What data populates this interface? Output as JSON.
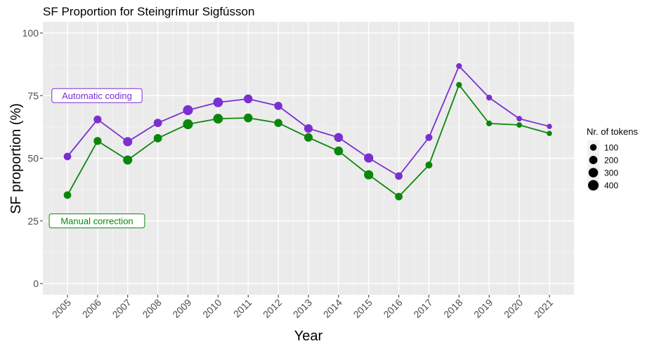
{
  "chart_data": {
    "type": "line",
    "title": "SF Proportion for Steingrímur Sigfússon",
    "xlabel": "Year",
    "ylabel": "SF proportion (%)",
    "ylim": [
      0,
      100
    ],
    "yticks": [
      0,
      25,
      50,
      75,
      100
    ],
    "grid": true,
    "categories": [
      "2005",
      "2006",
      "2007",
      "2008",
      "2009",
      "2010",
      "2011",
      "2012",
      "2013",
      "2014",
      "2015",
      "2016",
      "2017",
      "2018",
      "2019",
      "2020",
      "2021"
    ],
    "series": [
      {
        "name": "Automatic coding",
        "color": "#7b2fd0",
        "values": [
          50.7,
          65.5,
          56.6,
          64.1,
          69.2,
          72.3,
          73.7,
          70.9,
          61.9,
          58.3,
          50.1,
          42.9,
          58.3,
          86.8,
          74.2,
          65.8,
          62.7
        ],
        "tokens": [
          150,
          170,
          270,
          200,
          340,
          320,
          240,
          190,
          220,
          250,
          280,
          150,
          120,
          60,
          60,
          50,
          40
        ]
      },
      {
        "name": "Manual correction",
        "color": "#0a870a",
        "values": [
          35.3,
          56.9,
          49.3,
          58.0,
          63.6,
          65.8,
          66.1,
          64.1,
          58.3,
          52.9,
          43.4,
          34.7,
          47.3,
          79.3,
          63.9,
          63.3,
          59.9
        ],
        "tokens": [
          150,
          170,
          270,
          200,
          340,
          320,
          240,
          190,
          220,
          250,
          280,
          150,
          120,
          60,
          60,
          50,
          40
        ]
      }
    ],
    "annotations": [
      {
        "label": "Automatic coding",
        "color": "#7b2fd0",
        "x": "2005",
        "y": 75
      },
      {
        "label": "Manual correction",
        "color": "#0a870a",
        "x": "2005",
        "y": 25
      }
    ],
    "legend": {
      "title": "Nr. of tokens",
      "position": "right",
      "entries": [
        {
          "label": "100",
          "value": 100
        },
        {
          "label": "200",
          "value": 200
        },
        {
          "label": "300",
          "value": 300
        },
        {
          "label": "400",
          "value": 400
        }
      ]
    }
  }
}
